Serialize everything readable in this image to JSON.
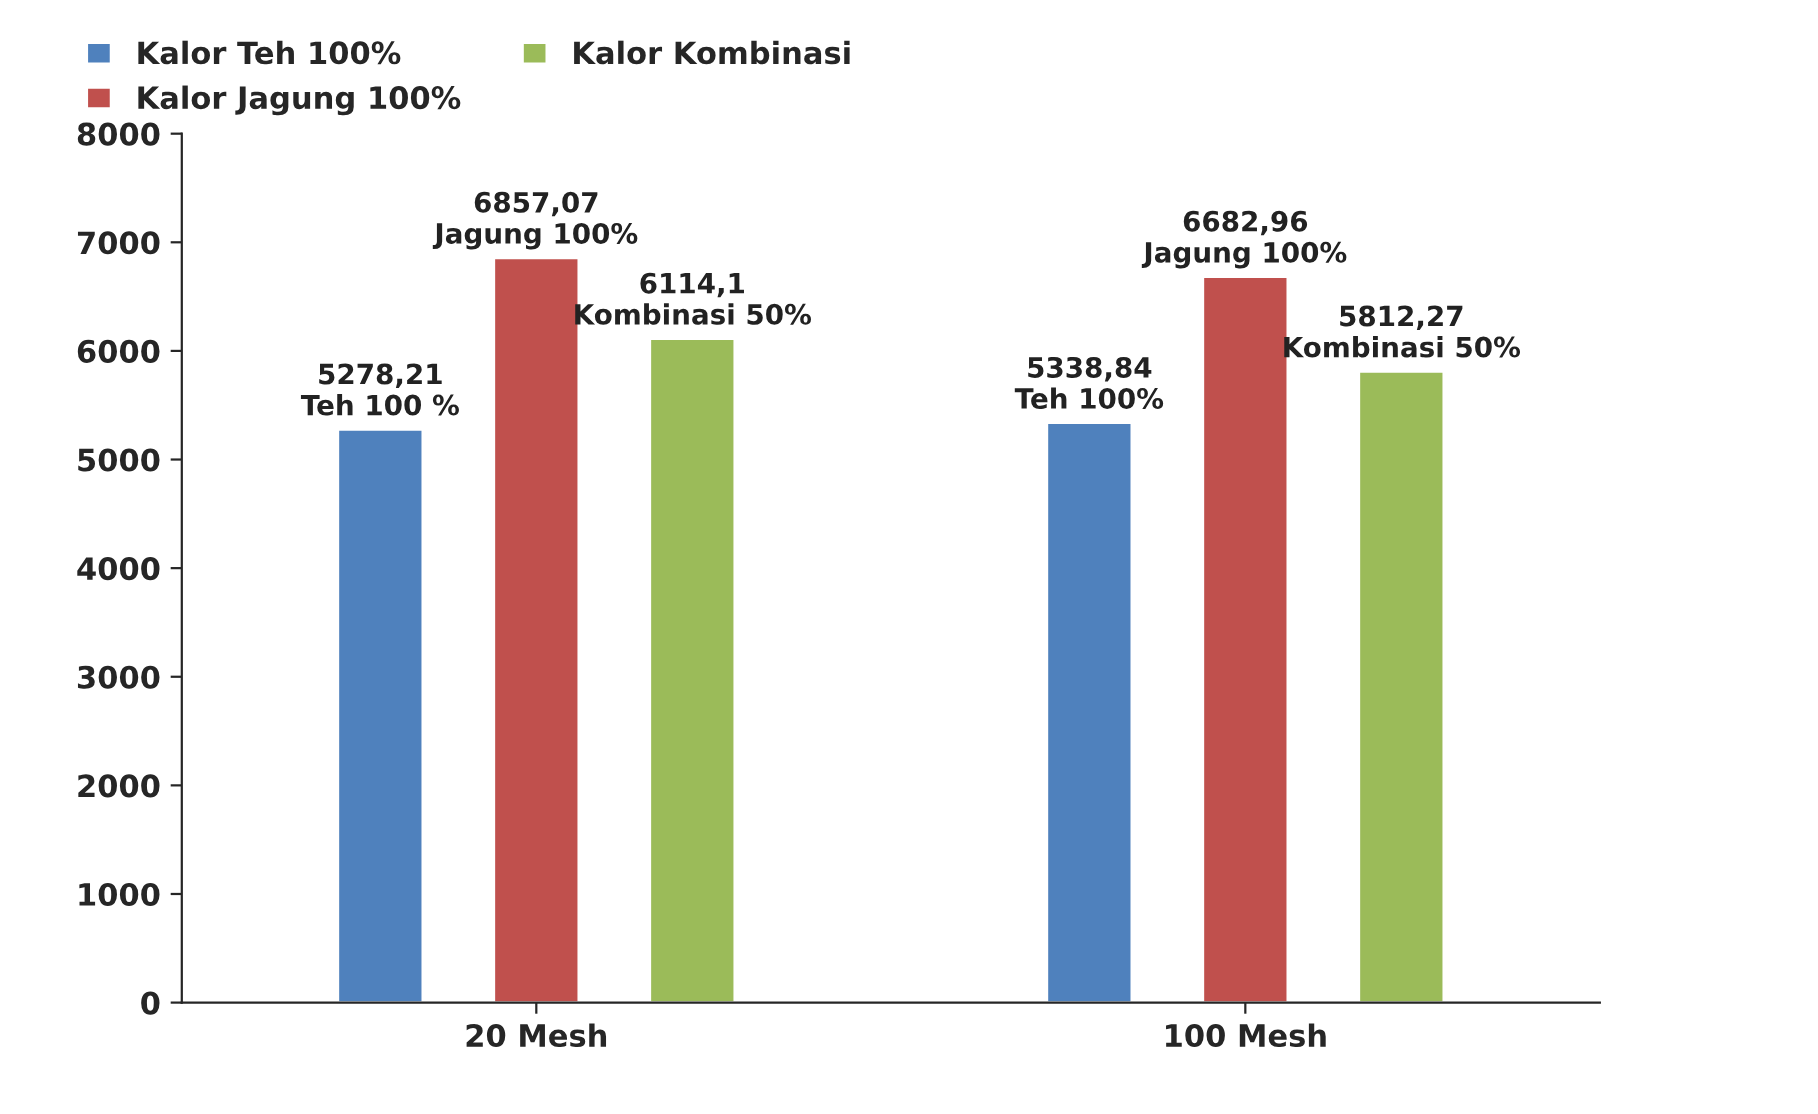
{
  "chart_data": {
    "type": "bar",
    "categories": [
      "20 Mesh",
      "100 Mesh"
    ],
    "series": [
      {
        "name": "Kalor Teh 100%",
        "color": "#4f81bd",
        "values": [
          5278.21,
          5338.84
        ],
        "value_labels": [
          "5278,21\nTeh 100 %",
          "5338,84\nTeh 100%"
        ]
      },
      {
        "name": "Kalor Jagung 100%",
        "color": "#c0504d",
        "values": [
          6857.07,
          6682.96
        ],
        "value_labels": [
          "6857,07\nJagung 100%",
          "6682,96\nJagung 100%"
        ]
      },
      {
        "name": "Kalor Kombinasi",
        "color": "#9bbb59",
        "values": [
          6114.1,
          5812.27
        ],
        "value_labels": [
          "6114,1\nKombinasi 50%",
          "5812,27\nKombinasi 50%"
        ]
      }
    ],
    "ylim": [
      0,
      8000
    ],
    "yticks": [
      0,
      1000,
      2000,
      3000,
      4000,
      5000,
      6000,
      7000,
      8000
    ],
    "grid": false,
    "legend": "top left"
  }
}
